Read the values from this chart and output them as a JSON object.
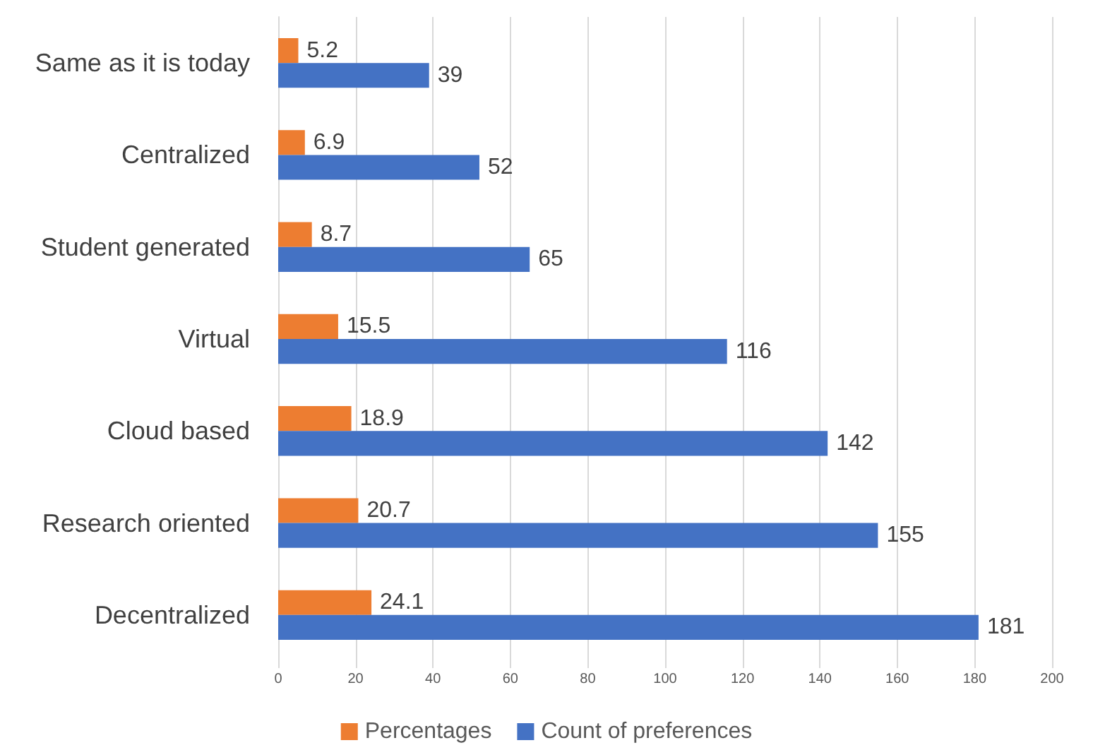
{
  "chart_data": {
    "type": "bar",
    "orientation": "horizontal",
    "categories": [
      "Same as it is today",
      "Centralized",
      "Student generated",
      "Virtual",
      "Cloud based",
      "Research oriented",
      "Decentralized"
    ],
    "series": [
      {
        "name": "Percentages",
        "color": "#ed7d31",
        "values": [
          5.2,
          6.9,
          8.7,
          15.5,
          18.9,
          20.7,
          24.1
        ]
      },
      {
        "name": "Count of preferences",
        "color": "#4472c4",
        "values": [
          39,
          52,
          65,
          116,
          142,
          155,
          181
        ]
      }
    ],
    "xlim": [
      0,
      200
    ],
    "xticks": [
      0,
      20,
      40,
      60,
      80,
      100,
      120,
      140,
      160,
      180,
      200
    ],
    "grid": "x",
    "legend": "bottom",
    "data_labels": true
  }
}
